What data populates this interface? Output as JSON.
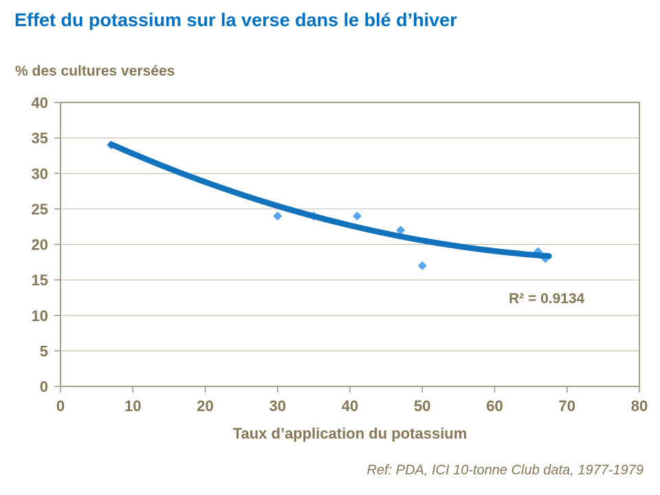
{
  "header": {
    "title": "Effet du potassium sur la verse dans le blé d’hiver"
  },
  "chart_data": {
    "type": "scatter",
    "title": "Effet du potassium sur la verse dans le blé d’hiver",
    "ylabel": "% des cultures versées",
    "xlabel": "Taux d’application du potassium",
    "points": [
      {
        "x": 7,
        "y": 34
      },
      {
        "x": 30,
        "y": 24
      },
      {
        "x": 35,
        "y": 24
      },
      {
        "x": 41,
        "y": 24
      },
      {
        "x": 47,
        "y": 22
      },
      {
        "x": 50,
        "y": 17
      },
      {
        "x": 66,
        "y": 19
      },
      {
        "x": 67,
        "y": 18
      }
    ],
    "trendline": {
      "shape": "quadratic-bezier",
      "x_start": 7,
      "y_start": 34.1,
      "control_x": 37.25,
      "control_y": 20.5,
      "x_end": 67.5,
      "y_end": 18.35
    },
    "r_squared_label": "R² = 0.9134",
    "x_ticks": [
      0,
      10,
      20,
      30,
      40,
      50,
      60,
      70,
      80
    ],
    "y_ticks": [
      0,
      5,
      10,
      15,
      20,
      25,
      30,
      35,
      40
    ],
    "xlim": [
      0,
      80
    ],
    "ylim": [
      0,
      40
    ],
    "grid": "horizontal",
    "legend": "none",
    "colors": {
      "title": "#0070C0",
      "trendline": "#1272BC",
      "marker": "#58A4EC",
      "text": "#867757",
      "gridline": "#C1B8A8",
      "plot_border": "#A79E8E",
      "tick_mark": "#9C9283"
    }
  },
  "footer": {
    "reference": "Ref: PDA, ICI 10-tonne Club data, 1977-1979"
  }
}
